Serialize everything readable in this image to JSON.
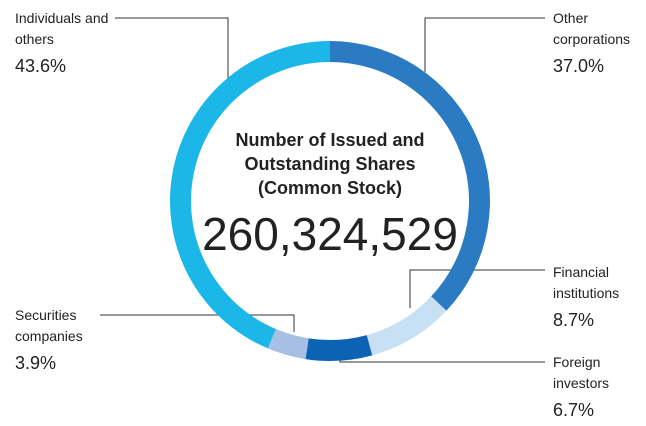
{
  "chart_data": {
    "type": "donut",
    "title_lines": [
      "Number of Issued and",
      "Outstanding Shares",
      "(Common Stock)"
    ],
    "total": {
      "value": 260324529,
      "label": "260,324,529"
    },
    "categories": [
      "Other corporations",
      "Financial institutions",
      "Foreign investors",
      "Securities companies",
      "Individuals and others"
    ],
    "values": [
      37.0,
      8.7,
      6.7,
      3.9,
      43.6
    ],
    "value_labels": [
      "37.0%",
      "8.7%",
      "6.7%",
      "3.9%",
      "43.6%"
    ],
    "colors": [
      "#2b7bc3",
      "#c7e0f4",
      "#0d63b3",
      "#a7bfe5",
      "#1bb7e9"
    ]
  }
}
